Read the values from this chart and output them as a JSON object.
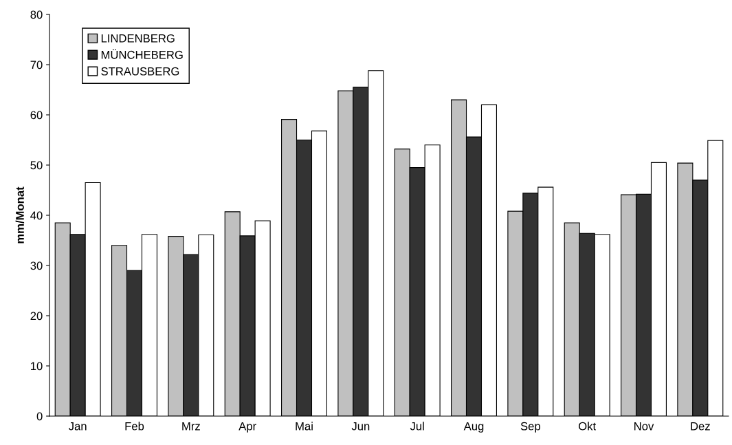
{
  "chart_data": {
    "type": "bar",
    "ylabel": "mm/Monat",
    "categories": [
      "Jan",
      "Feb",
      "Mrz",
      "Apr",
      "Mai",
      "Jun",
      "Jul",
      "Aug",
      "Sep",
      "Okt",
      "Nov",
      "Dez"
    ],
    "series": [
      {
        "name": "LINDENBERG",
        "color": "#c0c0c0",
        "values": [
          38.5,
          34,
          35.8,
          40.7,
          59.1,
          64.8,
          53.2,
          63,
          40.8,
          38.5,
          44.1,
          50.4
        ]
      },
      {
        "name": "MÜNCHEBERG",
        "color": "#333333",
        "values": [
          36.2,
          29,
          32.2,
          35.9,
          55,
          65.5,
          49.5,
          55.6,
          44.4,
          36.4,
          44.2,
          47
        ]
      },
      {
        "name": "STRAUSBERG",
        "color": "#ffffff",
        "values": [
          46.5,
          36.2,
          36.1,
          38.9,
          56.8,
          68.8,
          54,
          62,
          45.6,
          36.2,
          50.5,
          54.9
        ]
      }
    ],
    "ylim": [
      0,
      80
    ],
    "yticks": [
      0,
      10,
      20,
      30,
      40,
      50,
      60,
      70,
      80
    ],
    "grid": false,
    "legend": "top left"
  }
}
